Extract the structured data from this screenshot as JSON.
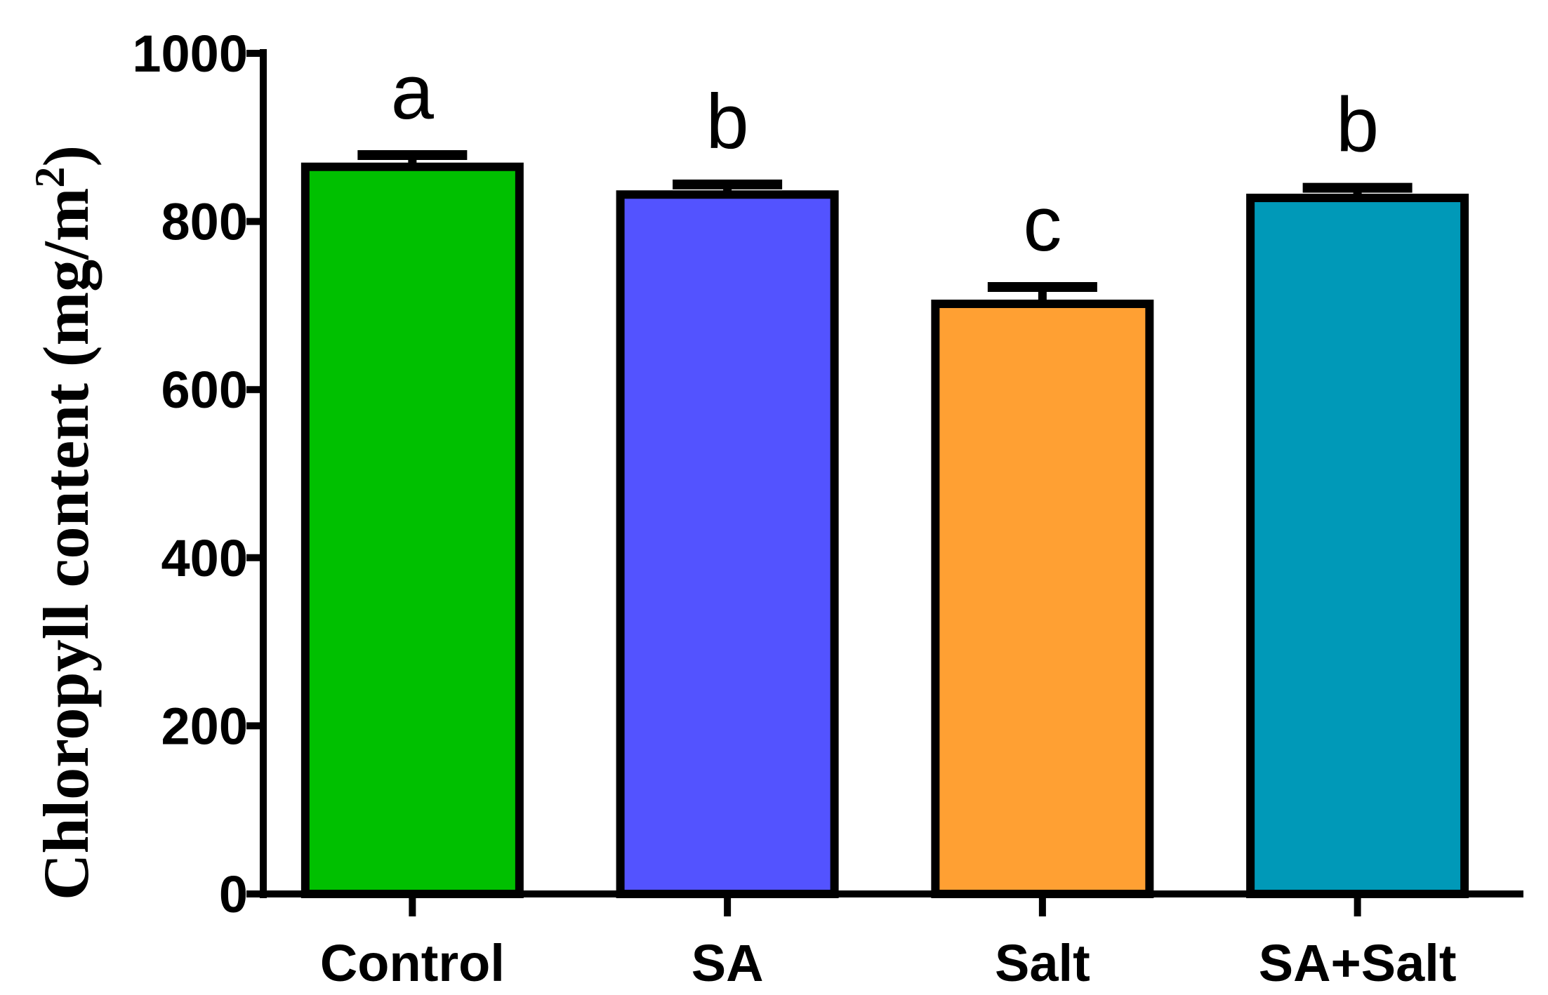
{
  "chart_data": {
    "type": "bar",
    "ylabel": "Chloropyll content (mg/m",
    "ylabel_superscript": "2",
    "ylabel_close": ")",
    "xlabel": "",
    "ylim": [
      0,
      1000
    ],
    "yticks": [
      0,
      200,
      400,
      600,
      800,
      1000
    ],
    "grid": false,
    "categories": [
      "Control",
      "SA",
      "Salt",
      "SA+Salt"
    ],
    "values": [
      865,
      832,
      702,
      828
    ],
    "errors": [
      14,
      12,
      20,
      12
    ],
    "significance": [
      "a",
      "b",
      "c",
      "b"
    ],
    "colors": [
      "#00c000",
      "#5353ff",
      "#ffa033",
      "#0099b8"
    ]
  }
}
